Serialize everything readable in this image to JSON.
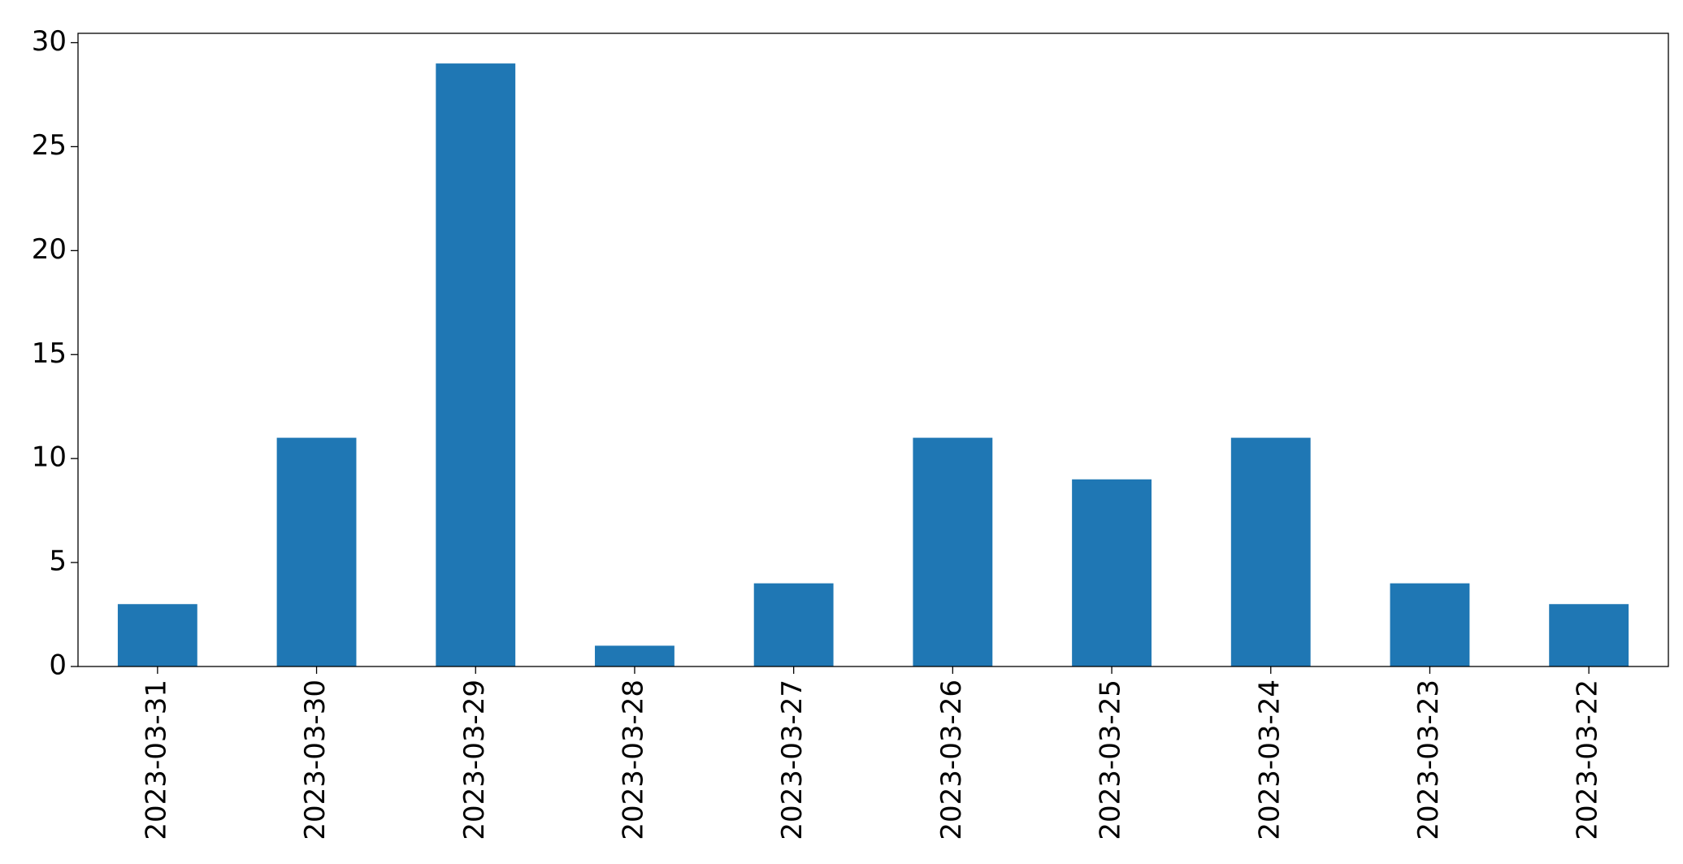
{
  "chart_data": {
    "type": "bar",
    "categories": [
      "2023-03-31",
      "2023-03-30",
      "2023-03-29",
      "2023-03-28",
      "2023-03-27",
      "2023-03-26",
      "2023-03-25",
      "2023-03-24",
      "2023-03-23",
      "2023-03-22"
    ],
    "values": [
      3,
      11,
      29,
      1,
      4,
      11,
      9,
      11,
      4,
      3
    ],
    "color": "#1f77b4",
    "ylim": [
      0,
      30.45
    ],
    "yticks": [
      0,
      5,
      10,
      15,
      20,
      25,
      30
    ],
    "grid": false
  }
}
